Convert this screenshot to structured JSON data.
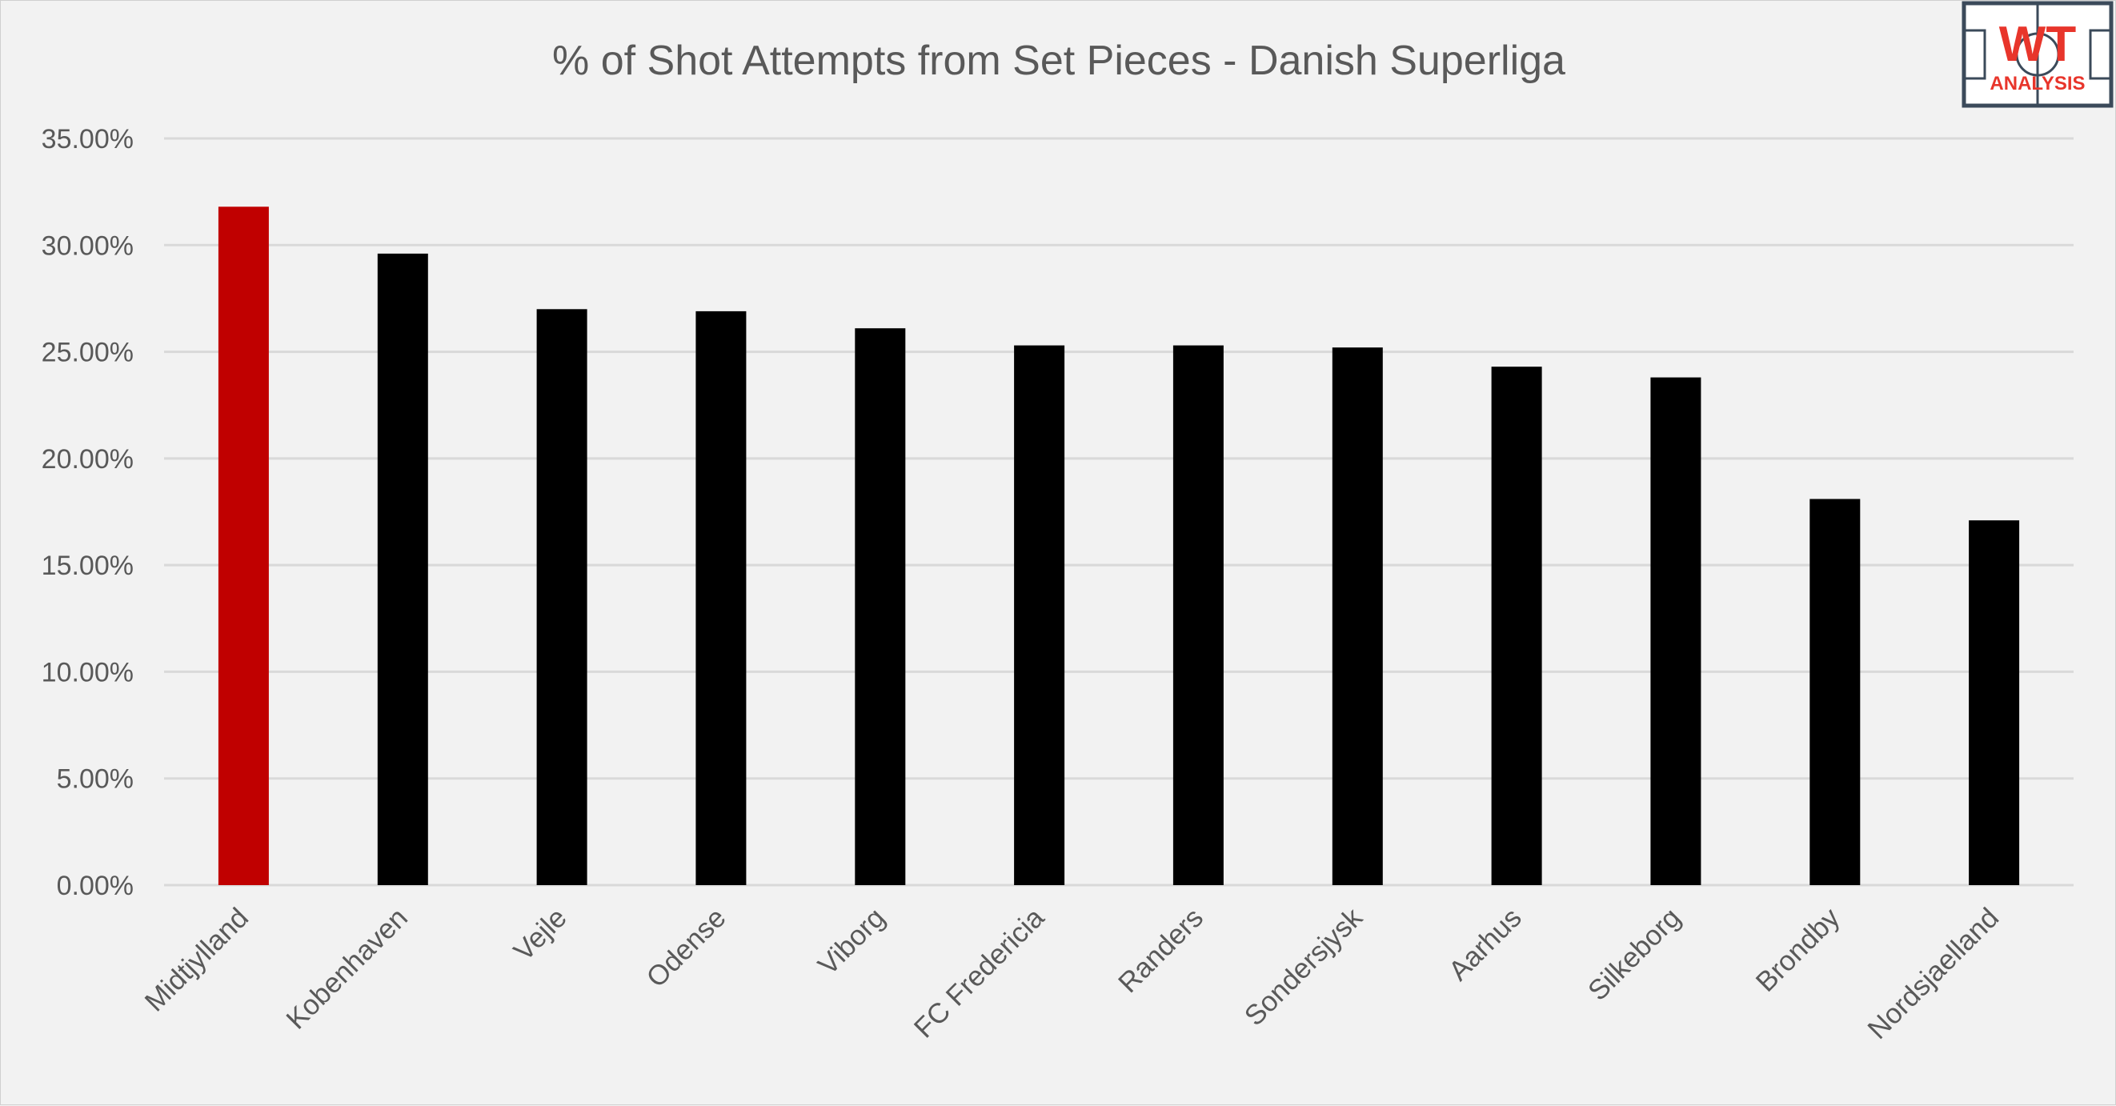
{
  "colors": {
    "background": "#f2f2f2",
    "highlight_bar": "#c00000",
    "default_bar": "#000000",
    "gridline": "#d9d9d9",
    "text": "#595959",
    "logo_accent": "#e8352b",
    "logo_frame": "#3b4a5a"
  },
  "logo": {
    "main": "WT",
    "sub": "ANALYSIS"
  },
  "chart_data": {
    "type": "bar",
    "title": "% of Shot Attempts from Set Pieces - Danish Superliga",
    "xlabel": "",
    "ylabel": "",
    "ylim": [
      0,
      35
    ],
    "ytick_values": [
      0,
      5,
      10,
      15,
      20,
      25,
      30,
      35
    ],
    "ytick_labels": [
      "0.00%",
      "5.00%",
      "10.00%",
      "15.00%",
      "20.00%",
      "25.00%",
      "30.00%",
      "35.00%"
    ],
    "grid": true,
    "legend": "none",
    "highlight_category": "Midtjylland",
    "categories": [
      "Midtjylland",
      "Kobenhaven",
      "Vejle",
      "Odense",
      "Viborg",
      "FC Fredericia",
      "Randers",
      "Sondersjysk",
      "Aarhus",
      "Silkeborg",
      "Brondby",
      "Nordsjaelland"
    ],
    "values": [
      31.8,
      29.6,
      27.0,
      26.9,
      26.1,
      25.3,
      25.3,
      25.2,
      24.3,
      23.8,
      18.1,
      17.1
    ]
  }
}
